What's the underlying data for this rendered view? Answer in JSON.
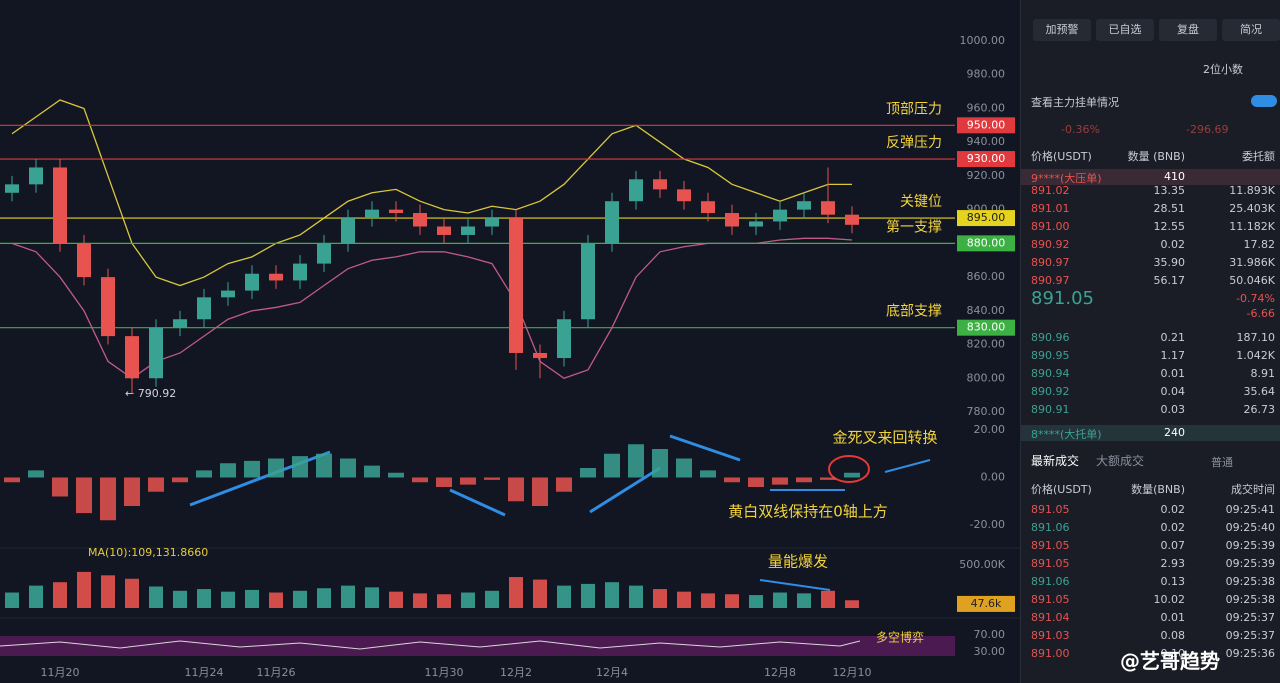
{
  "chart_data": {
    "type": "candlestick",
    "open": [
      910,
      915,
      925,
      880,
      860,
      825,
      800,
      830,
      835,
      848,
      852,
      862,
      858,
      868,
      880,
      895,
      900,
      898,
      890,
      885,
      890,
      895,
      815,
      812,
      835,
      880,
      905,
      918,
      912,
      905,
      898,
      890,
      893,
      900,
      905,
      897
    ],
    "high": [
      920,
      930,
      930,
      885,
      865,
      830,
      835,
      840,
      853,
      857,
      867,
      867,
      873,
      885,
      900,
      905,
      905,
      903,
      895,
      895,
      900,
      900,
      820,
      840,
      885,
      910,
      923,
      923,
      917,
      910,
      903,
      898,
      905,
      910,
      925,
      902
    ],
    "low": [
      905,
      910,
      875,
      855,
      820,
      790.92,
      795,
      825,
      830,
      843,
      847,
      853,
      853,
      863,
      875,
      890,
      893,
      885,
      880,
      880,
      885,
      805,
      800,
      807,
      830,
      875,
      900,
      907,
      900,
      893,
      885,
      885,
      888,
      895,
      892,
      886
    ],
    "close": [
      915,
      925,
      880,
      860,
      825,
      800,
      830,
      835,
      848,
      852,
      862,
      858,
      868,
      880,
      895,
      900,
      898,
      890,
      885,
      890,
      895,
      815,
      812,
      835,
      880,
      905,
      918,
      912,
      905,
      898,
      890,
      893,
      900,
      905,
      897,
      891
    ],
    "upper_band": [
      945,
      955,
      965,
      960,
      920,
      880,
      860,
      855,
      860,
      868,
      872,
      880,
      885,
      895,
      905,
      910,
      912,
      905,
      900,
      898,
      902,
      900,
      905,
      915,
      930,
      945,
      950,
      940,
      930,
      925,
      915,
      910,
      905,
      910,
      915,
      915
    ],
    "lower_band": [
      880,
      875,
      860,
      840,
      810,
      800,
      810,
      815,
      825,
      835,
      840,
      842,
      845,
      855,
      865,
      870,
      872,
      875,
      875,
      872,
      868,
      845,
      810,
      800,
      805,
      830,
      860,
      875,
      878,
      880,
      880,
      880,
      882,
      883,
      883,
      882
    ],
    "macd": [
      -2,
      3,
      -8,
      -15,
      -18,
      -12,
      -6,
      -2,
      3,
      6,
      7,
      8,
      9,
      10,
      8,
      5,
      2,
      -2,
      -4,
      -3,
      -1,
      -10,
      -12,
      -6,
      4,
      10,
      14,
      12,
      8,
      3,
      -2,
      -4,
      -3,
      -2,
      -1,
      2
    ],
    "volume": [
      180,
      260,
      300,
      420,
      380,
      340,
      250,
      200,
      220,
      190,
      210,
      180,
      200,
      230,
      260,
      240,
      190,
      170,
      160,
      180,
      200,
      360,
      330,
      260,
      280,
      300,
      260,
      220,
      190,
      170,
      160,
      150,
      180,
      170,
      200,
      90
    ],
    "up_color": "#3aa293",
    "down_color": "#e8524f",
    "band_up_color": "#d9c83a",
    "band_low_color": "#c05a8a",
    "ylim": [
      780,
      1000
    ],
    "yticks": [
      {
        "value": 1000,
        "label": "1000.00"
      },
      {
        "value": 980,
        "label": "980.00"
      },
      {
        "value": 960,
        "label": "960.00"
      },
      {
        "value": 940,
        "label": "940.00"
      },
      {
        "value": 920,
        "label": "920.00"
      },
      {
        "value": 900,
        "label": "900.00"
      },
      {
        "value": 880,
        "label": "880.00"
      },
      {
        "value": 860,
        "label": "860.00"
      },
      {
        "value": 840,
        "label": "840.00"
      },
      {
        "value": 820,
        "label": "820.00"
      },
      {
        "value": 800,
        "label": "800.00"
      },
      {
        "value": 780,
        "label": "780.00"
      }
    ],
    "macd_ylim": [
      -20,
      20
    ],
    "macd_yticks": [
      {
        "value": 20,
        "label": "20.00"
      },
      {
        "value": 0,
        "label": "0.00"
      },
      {
        "value": -20,
        "label": "-20.00"
      }
    ],
    "volume_ylim": [
      0,
      500
    ],
    "volume_yticks": [
      {
        "value": 500,
        "label": "500.00K"
      }
    ],
    "volume_tag": {
      "value": 47.6,
      "label": "47.6k"
    },
    "osc_yticks": [
      {
        "value": 70,
        "label": "70.00"
      },
      {
        "value": 30,
        "label": "30.00"
      }
    ],
    "xticks": [
      {
        "value": 2,
        "label": "11月20"
      },
      {
        "value": 8,
        "label": "11月24"
      },
      {
        "value": 11,
        "label": "11月26"
      },
      {
        "value": 18,
        "label": "11月30"
      },
      {
        "value": 21,
        "label": "12月2"
      },
      {
        "value": 25,
        "label": "12月4"
      },
      {
        "value": 32,
        "label": "12月8"
      },
      {
        "value": 35,
        "label": "12月10"
      }
    ],
    "levels": [
      {
        "value": 950,
        "label": "950.00",
        "name": "顶部压力",
        "color": "#e0393e"
      },
      {
        "value": 930,
        "label": "930.00",
        "name": "反弹压力",
        "color": "#e0393e"
      },
      {
        "value": 895,
        "label": "895.00",
        "name": "关键位",
        "color": "#e6d31f"
      },
      {
        "value": 880,
        "label": "880.00",
        "name": "第一支撑",
        "color": "#3cb043"
      },
      {
        "value": 830,
        "label": "830.00",
        "name": "底部支撑",
        "color": "#3cb043"
      }
    ],
    "low_marker": "← 790.92",
    "ma_label": "MA(10):109,131.8660",
    "annotations": {
      "cross": "金死叉来回转换",
      "lines": "黄白双线保持在0轴上方",
      "volume": "量能爆发",
      "osc": "多空博弈"
    }
  },
  "toolbar": {
    "buttons": [
      "加预警",
      "已自选",
      "复盘",
      "简况"
    ],
    "decimals": "2位小数"
  },
  "depth": {
    "title": "查看主力挂单情况",
    "change_pct": "-0.36%",
    "change": "-296.69",
    "headers": [
      "价格(USDT)",
      "数量 (BNB)",
      "委托额"
    ],
    "big_ask": [
      "9****(大压单)",
      "410"
    ],
    "asks": [
      [
        "891.02",
        "13.35",
        "11.893K"
      ],
      [
        "891.01",
        "28.51",
        "25.403K"
      ],
      [
        "891.00",
        "12.55",
        "11.182K"
      ],
      [
        "890.92",
        "0.02",
        "17.82"
      ],
      [
        "890.97",
        "35.90",
        "31.986K"
      ],
      [
        "890.97",
        "56.17",
        "50.046K"
      ]
    ],
    "mid": [
      "891.05",
      "-0.74%",
      "-6.66"
    ],
    "bids": [
      [
        "890.96",
        "0.21",
        "187.10"
      ],
      [
        "890.95",
        "1.17",
        "1.042K"
      ],
      [
        "890.94",
        "0.01",
        "8.91"
      ],
      [
        "890.92",
        "0.04",
        "35.64"
      ],
      [
        "890.91",
        "0.03",
        "26.73"
      ]
    ],
    "big_bid": [
      "8****(大托单)",
      "240"
    ]
  },
  "trades": {
    "tabs": [
      "最新成交",
      "大额成交"
    ],
    "filter": "普通",
    "headers": [
      "价格(USDT)",
      "数量(BNB)",
      "成交时间"
    ],
    "rows": [
      [
        "891.05",
        "0.02",
        "09:25:41"
      ],
      [
        "891.06",
        "0.02",
        "09:25:40"
      ],
      [
        "891.05",
        "0.07",
        "09:25:39"
      ],
      [
        "891.05",
        "2.93",
        "09:25:39"
      ],
      [
        "891.06",
        "0.13",
        "09:25:38"
      ],
      [
        "891.05",
        "10.02",
        "09:25:38"
      ],
      [
        "891.04",
        "0.01",
        "09:25:37"
      ],
      [
        "891.03",
        "0.08",
        "09:25:37"
      ],
      [
        "891.00",
        "0.10",
        "09:25:36"
      ]
    ]
  },
  "watermark": "@艺哥趋势"
}
